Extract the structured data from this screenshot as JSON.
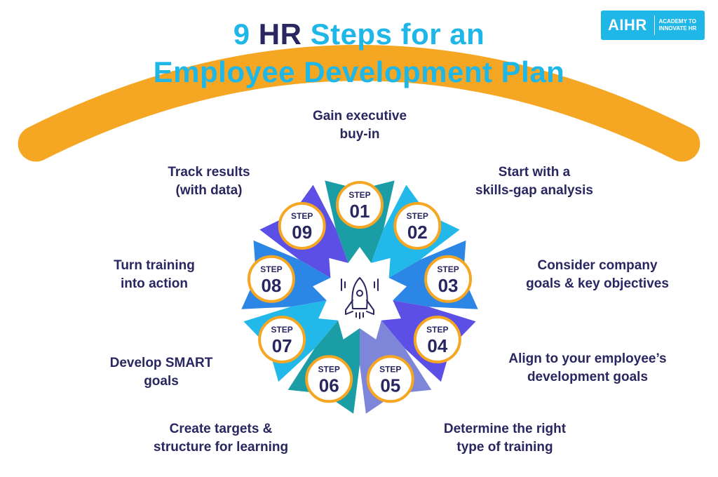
{
  "title": {
    "line1_prefix": "9 ",
    "line1_hr": "HR",
    "line1_suffix": " Steps for an",
    "line2": "Employee Development Plan"
  },
  "logo": {
    "mark": "AIHR",
    "tagline_1": "ACADEMY TO",
    "tagline_2": "INNOVATE HR"
  },
  "colors": {
    "title": "#1fb6e8",
    "dark_text": "#2a2660",
    "badge_ring": "#f5a623",
    "step_01": "#1b9da6",
    "step_02": "#22b9ea",
    "step_03": "#2b86e5",
    "step_04": "#5b4fe6",
    "step_05": "#7d86d8",
    "step_06": "#1b9da6",
    "step_07": "#22b9ea",
    "step_08": "#2b86e5",
    "step_09": "#5b4fe6"
  },
  "center_icon": "rocket-icon",
  "step_word": "STEP",
  "steps": [
    {
      "number": "01",
      "line1": "Gain executive",
      "line2": "buy-in"
    },
    {
      "number": "02",
      "line1": "Start with a",
      "line2": "skills-gap analysis"
    },
    {
      "number": "03",
      "line1": "Consider company",
      "line2": "goals & key objectives"
    },
    {
      "number": "04",
      "line1": "Align to your employee’s",
      "line2": "development goals"
    },
    {
      "number": "05",
      "line1": "Determine the right",
      "line2": "type of training"
    },
    {
      "number": "06",
      "line1": "Create targets &",
      "line2": "structure for learning"
    },
    {
      "number": "07",
      "line1": "Develop SMART",
      "line2": "goals"
    },
    {
      "number": "08",
      "line1": "Turn training",
      "line2": "into action"
    },
    {
      "number": "09",
      "line1": "Track results",
      "line2": "(with data)"
    }
  ]
}
